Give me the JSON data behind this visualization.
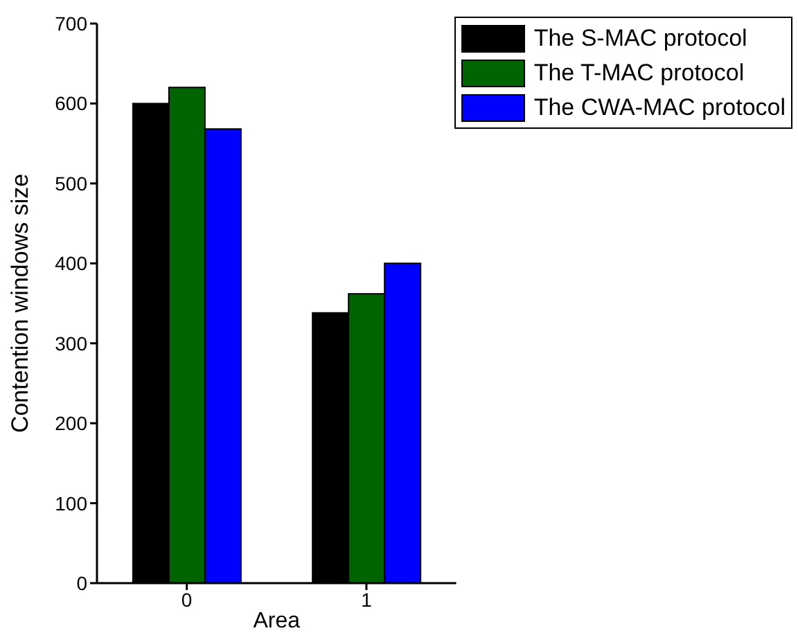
{
  "chart_data": {
    "type": "bar",
    "xlabel": "Area",
    "ylabel": "Contention windows size",
    "categories": [
      "0",
      "1"
    ],
    "series": [
      {
        "name": "The S-MAC protocol",
        "color": "#000000",
        "values": [
          600,
          338
        ]
      },
      {
        "name": "The T-MAC protocol",
        "color": "#006400",
        "values": [
          620,
          362
        ]
      },
      {
        "name": "The CWA-MAC protocol",
        "color": "#0000ff",
        "values": [
          568,
          400
        ]
      }
    ],
    "ylim": [
      0,
      700
    ],
    "yticks": [
      0,
      100,
      200,
      300,
      400,
      500,
      600,
      700
    ],
    "legend": "top right",
    "grid": false
  }
}
